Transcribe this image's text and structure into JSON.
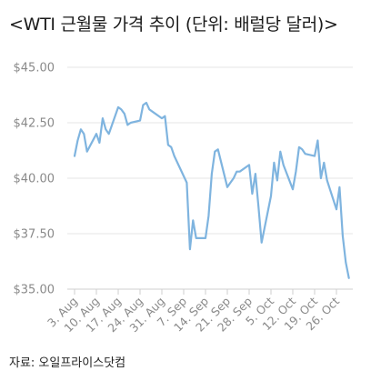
{
  "title": "<WTI 근월물 가격 추이 (단위: 배럴당 달러)>",
  "source": "자료: 오일프라이스닷컴",
  "chart_data": {
    "type": "line",
    "title": "<WTI 근월물 가격 추이 (단위: 배럴당 달러)>",
    "xlabel": "",
    "ylabel": "",
    "ylim": [
      35.0,
      45.0
    ],
    "y_ticks": [
      45.0,
      42.5,
      40.0,
      37.5,
      35.0
    ],
    "y_tick_labels": [
      "$45.00",
      "$42.50",
      "$40.00",
      "$37.50",
      "$35.00"
    ],
    "x_ticks": [
      "3. Aug",
      "10. Aug",
      "17. Aug",
      "24. Aug",
      "31. Aug",
      "7. Sep",
      "14. Sep",
      "21. Sep",
      "28. Sep",
      "5. Oct",
      "12. Oct",
      "19. Oct",
      "26. Oct"
    ],
    "grid": "horizontal",
    "line_color": "#7fb4df",
    "series": [
      {
        "x": [
          "2020-08-03",
          "2020-08-04",
          "2020-08-05",
          "2020-08-06",
          "2020-08-07",
          "2020-08-10",
          "2020-08-11",
          "2020-08-12",
          "2020-08-13",
          "2020-08-14",
          "2020-08-17",
          "2020-08-18",
          "2020-08-19",
          "2020-08-20",
          "2020-08-21",
          "2020-08-24",
          "2020-08-25",
          "2020-08-26",
          "2020-08-27",
          "2020-08-28",
          "2020-08-31",
          "2020-09-01",
          "2020-09-02",
          "2020-09-03",
          "2020-09-04",
          "2020-09-08",
          "2020-09-09",
          "2020-09-10",
          "2020-09-11",
          "2020-09-14",
          "2020-09-15",
          "2020-09-16",
          "2020-09-17",
          "2020-09-18",
          "2020-09-21",
          "2020-09-22",
          "2020-09-23",
          "2020-09-24",
          "2020-09-25",
          "2020-09-28",
          "2020-09-29",
          "2020-09-30",
          "2020-10-01",
          "2020-10-02",
          "2020-10-05",
          "2020-10-06",
          "2020-10-07",
          "2020-10-08",
          "2020-10-09",
          "2020-10-12",
          "2020-10-13",
          "2020-10-14",
          "2020-10-15",
          "2020-10-16",
          "2020-10-19",
          "2020-10-20",
          "2020-10-21",
          "2020-10-22",
          "2020-10-23",
          "2020-10-26",
          "2020-10-27",
          "2020-10-28",
          "2020-10-29",
          "2020-10-30"
        ],
        "values": [
          41.0,
          41.7,
          42.2,
          42.0,
          41.2,
          42.0,
          41.6,
          42.7,
          42.2,
          42.0,
          43.2,
          43.1,
          42.9,
          42.4,
          42.5,
          42.6,
          43.3,
          43.4,
          43.1,
          43.0,
          42.7,
          42.8,
          41.5,
          41.4,
          41.0,
          39.8,
          36.8,
          38.1,
          37.3,
          37.3,
          38.3,
          40.2,
          41.2,
          41.3,
          39.6,
          39.8,
          40.0,
          40.3,
          40.3,
          40.6,
          39.3,
          40.2,
          38.7,
          37.1,
          39.2,
          40.7,
          39.9,
          41.2,
          40.6,
          39.5,
          40.3,
          41.4,
          41.3,
          41.1,
          41.0,
          41.7,
          40.0,
          40.7,
          39.9,
          38.6,
          39.6,
          37.4,
          36.2,
          35.5
        ]
      }
    ]
  }
}
